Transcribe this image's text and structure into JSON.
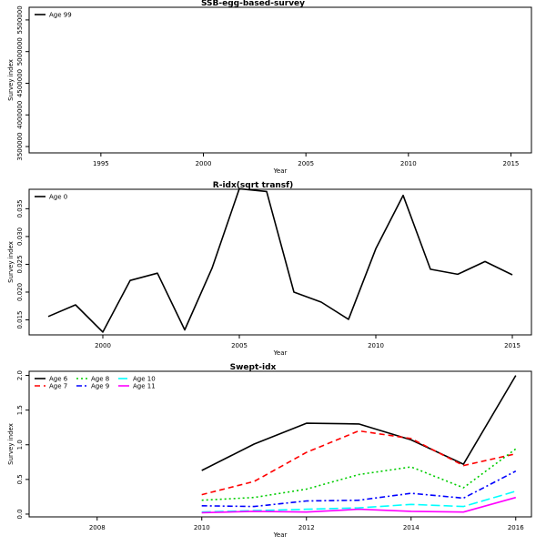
{
  "chart_data": [
    {
      "type": "line",
      "title": "SSB-egg-based-survey",
      "xlabel": "Year",
      "ylabel": "Survey index",
      "xlim": [
        1991.5,
        2016.0
      ],
      "ylim": [
        3400000,
        5700000
      ],
      "xticks": [
        1995,
        2000,
        2005,
        2010,
        2015
      ],
      "yticks": [
        3500000,
        4000000,
        4500000,
        5000000,
        5500000
      ],
      "ytick_labels": [
        "3500000",
        "4000000",
        "4500000",
        "5000000",
        "5500000"
      ],
      "legend_position": "top-left",
      "series": [
        {
          "name": "Age 99",
          "color": "#000000",
          "dash": "",
          "x": [],
          "y": []
        }
      ]
    },
    {
      "type": "line",
      "title": "R-idx(sqrt transf)",
      "xlabel": "Year",
      "ylabel": "Survey index",
      "xlim": [
        1997.3,
        2015.7
      ],
      "ylim": [
        0.0123,
        0.0385
      ],
      "xticks": [
        2000,
        2005,
        2010,
        2015
      ],
      "yticks": [
        0.015,
        0.02,
        0.025,
        0.03,
        0.035
      ],
      "ytick_labels": [
        "0.015",
        "0.020",
        "0.025",
        "0.030",
        "0.035"
      ],
      "legend_position": "top-left",
      "series": [
        {
          "name": "Age 0",
          "color": "#000000",
          "dash": "",
          "x": [
            1998,
            1999,
            2000,
            2001,
            2002,
            2003,
            2004,
            2005,
            2006,
            2007,
            2008,
            2009,
            2010,
            2011,
            2012,
            2013,
            2014,
            2015
          ],
          "y": [
            0.0156,
            0.0177,
            0.0128,
            0.0221,
            0.0234,
            0.0132,
            0.0243,
            0.0386,
            0.0381,
            0.02,
            0.0182,
            0.0151,
            0.0278,
            0.0374,
            0.0241,
            0.0232,
            0.0255,
            0.0231
          ]
        }
      ]
    },
    {
      "type": "line",
      "title": "Swept-idx",
      "xlabel": "Year",
      "ylabel": "Survey index",
      "xlim": [
        2006.7,
        2016.3
      ],
      "ylim": [
        -0.04,
        2.06
      ],
      "xticks": [
        2008,
        2010,
        2012,
        2014,
        2016
      ],
      "yticks": [
        0.0,
        0.5,
        1.0,
        1.5,
        2.0
      ],
      "ytick_labels": [
        "0.0",
        "0.5",
        "1.0",
        "1.5",
        "2.0"
      ],
      "legend_position": "top-left",
      "series": [
        {
          "name": "Age 6",
          "color": "#000000",
          "dash": "",
          "x": [
            2010,
            2011,
            2012,
            2013,
            2014,
            2015,
            2016
          ],
          "y": [
            0.63,
            1.01,
            1.31,
            1.3,
            1.07,
            0.72,
            2.0
          ]
        },
        {
          "name": "Age 7",
          "color": "#ff0000",
          "dash": "6,4",
          "x": [
            2010,
            2011,
            2012,
            2013,
            2014,
            2015,
            2016
          ],
          "y": [
            0.28,
            0.47,
            0.89,
            1.2,
            1.09,
            0.7,
            0.87
          ]
        },
        {
          "name": "Age 8",
          "color": "#00cd00",
          "dash": "2,3",
          "x": [
            2010,
            2011,
            2012,
            2013,
            2014,
            2015,
            2016
          ],
          "y": [
            0.2,
            0.24,
            0.36,
            0.57,
            0.68,
            0.38,
            0.94
          ]
        },
        {
          "name": "Age 9",
          "color": "#0000ff",
          "dash": "6,3,2,3",
          "x": [
            2010,
            2011,
            2012,
            2013,
            2014,
            2015,
            2016
          ],
          "y": [
            0.12,
            0.11,
            0.19,
            0.2,
            0.3,
            0.23,
            0.62
          ]
        },
        {
          "name": "Age 10",
          "color": "#00ffff",
          "dash": "10,4",
          "x": [
            2010,
            2011,
            2012,
            2013,
            2014,
            2015,
            2016
          ],
          "y": [
            0.03,
            0.05,
            0.07,
            0.09,
            0.14,
            0.11,
            0.33
          ]
        },
        {
          "name": "Age 11",
          "color": "#ff00ff",
          "dash": "",
          "x": [
            2010,
            2011,
            2012,
            2013,
            2014,
            2015,
            2016
          ],
          "y": [
            0.02,
            0.04,
            0.03,
            0.07,
            0.04,
            0.03,
            0.24
          ]
        }
      ]
    }
  ]
}
